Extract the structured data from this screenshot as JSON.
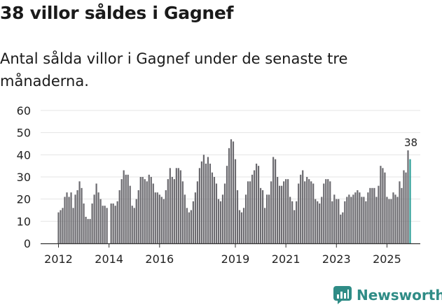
{
  "title": "38 villor såldes i Gagnef",
  "subtitle": "Antal sålda villor i Gagnef under de senaste tre månaderna.",
  "brand": {
    "name": "Newsworthy",
    "icon": "newsworthy-logo-icon"
  },
  "colors": {
    "bar": "#6b6a6f",
    "highlight": "#2a9d96",
    "grid": "#e4e4e4",
    "brand": "#2f8c86"
  },
  "chart_data": {
    "type": "bar",
    "title": "38 villor såldes i Gagnef",
    "xlabel": "",
    "ylabel": "",
    "ylim": [
      0,
      60
    ],
    "y_ticks": [
      0,
      10,
      20,
      30,
      40,
      50,
      60
    ],
    "x_tick_labels": [
      "2012",
      "2014",
      "2016",
      "2019",
      "2021",
      "2023",
      "2025"
    ],
    "x_tick_index": [
      0,
      24,
      48,
      84,
      108,
      132,
      156
    ],
    "start": "2012-01",
    "frequency": "monthly (rolling three-month sum)",
    "grid": true,
    "highlight_label": "38",
    "values": [
      14,
      15,
      16,
      21,
      23,
      21,
      23,
      16,
      22,
      24,
      28,
      25,
      18,
      12,
      11,
      11,
      18,
      22,
      27,
      23,
      20,
      17,
      17,
      16,
      0,
      18,
      18,
      17,
      19,
      24,
      29,
      33,
      31,
      31,
      26,
      17,
      16,
      20,
      24,
      30,
      30,
      29,
      28,
      31,
      30,
      27,
      23,
      23,
      22,
      21,
      20,
      24,
      29,
      34,
      30,
      29,
      34,
      34,
      33,
      28,
      22,
      16,
      14,
      15,
      19,
      23,
      28,
      34,
      37,
      40,
      36,
      39,
      36,
      32,
      30,
      27,
      20,
      19,
      22,
      27,
      35,
      43,
      47,
      46,
      38,
      24,
      15,
      14,
      16,
      22,
      28,
      28,
      31,
      33,
      36,
      35,
      25,
      24,
      16,
      22,
      22,
      28,
      39,
      38,
      30,
      26,
      26,
      28,
      29,
      29,
      21,
      19,
      15,
      19,
      27,
      31,
      33,
      28,
      30,
      29,
      28,
      27,
      20,
      19,
      18,
      21,
      27,
      29,
      29,
      28,
      19,
      22,
      20,
      20,
      13,
      14,
      19,
      21,
      22,
      21,
      22,
      23,
      24,
      23,
      21,
      21,
      19,
      23,
      25,
      25,
      25,
      21,
      26,
      35,
      34,
      32,
      21,
      20,
      20,
      23,
      22,
      21,
      28,
      25,
      33,
      32,
      42,
      38
    ]
  }
}
